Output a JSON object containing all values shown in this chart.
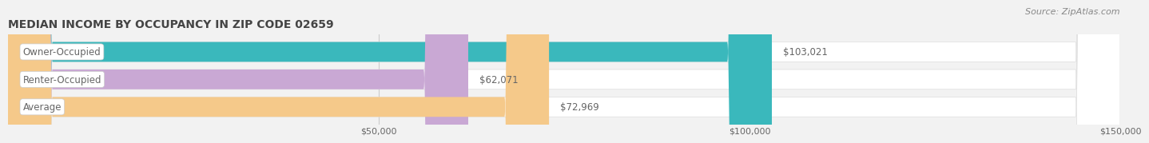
{
  "title": "MEDIAN INCOME BY OCCUPANCY IN ZIP CODE 02659",
  "source": "Source: ZipAtlas.com",
  "categories": [
    "Owner-Occupied",
    "Renter-Occupied",
    "Average"
  ],
  "values": [
    103021,
    62071,
    72969
  ],
  "bar_colors": [
    "#3ab8bc",
    "#c9a8d4",
    "#f5c98a"
  ],
  "bar_labels": [
    "$103,021",
    "$62,071",
    "$72,969"
  ],
  "background_color": "#f2f2f2",
  "bar_bg_color": "#ffffff",
  "bar_border_color": "#dddddd",
  "xlim": [
    0,
    150000
  ],
  "xticks": [
    50000,
    100000,
    150000
  ],
  "xtick_labels": [
    "$50,000",
    "$100,000",
    "$150,000"
  ],
  "title_fontsize": 10,
  "label_fontsize": 8.5,
  "tick_fontsize": 8,
  "source_fontsize": 8,
  "bar_height": 0.72,
  "label_color": "#666666",
  "category_fontsize": 8.5,
  "title_color": "#444444",
  "source_color": "#888888"
}
